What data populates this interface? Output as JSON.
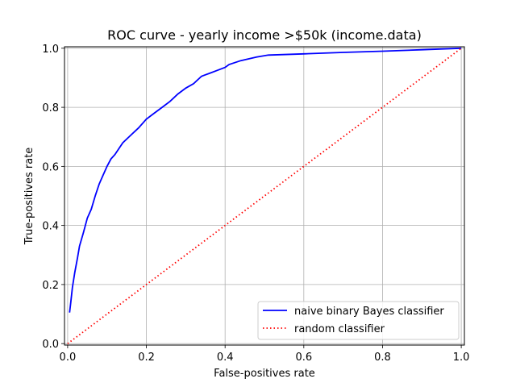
{
  "chart_data": {
    "type": "line",
    "title": "ROC curve - yearly income >$50k (income.data)",
    "xlabel": "False-positives rate",
    "ylabel": "True-positives rate",
    "xlim": [
      -0.008,
      1.008
    ],
    "ylim": [
      -0.005,
      1.005
    ],
    "xticks": [
      0.0,
      0.2,
      0.4,
      0.6,
      0.8,
      1.0
    ],
    "yticks": [
      0.0,
      0.2,
      0.4,
      0.6,
      0.8,
      1.0
    ],
    "xtick_labels": [
      "0.0",
      "0.2",
      "0.4",
      "0.6",
      "0.8",
      "1.0"
    ],
    "ytick_labels": [
      "0.0",
      "0.2",
      "0.4",
      "0.6",
      "0.8",
      "1.0"
    ],
    "grid": true,
    "legend_position": "lower-right",
    "series": [
      {
        "name": "naive binary Bayes classifier",
        "color": "#0000ff",
        "style": "solid",
        "x": [
          0.005,
          0.008,
          0.012,
          0.018,
          0.025,
          0.03,
          0.04,
          0.05,
          0.06,
          0.07,
          0.08,
          0.09,
          0.1,
          0.11,
          0.12,
          0.14,
          0.16,
          0.18,
          0.2,
          0.22,
          0.24,
          0.26,
          0.28,
          0.3,
          0.32,
          0.34,
          0.36,
          0.38,
          0.4,
          0.41,
          0.44,
          0.48,
          0.51,
          0.6,
          0.7,
          0.8,
          0.9,
          1.0
        ],
        "y": [
          0.105,
          0.14,
          0.19,
          0.24,
          0.29,
          0.33,
          0.375,
          0.425,
          0.455,
          0.5,
          0.54,
          0.57,
          0.6,
          0.625,
          0.64,
          0.68,
          0.705,
          0.73,
          0.76,
          0.78,
          0.8,
          0.82,
          0.845,
          0.865,
          0.88,
          0.905,
          0.915,
          0.925,
          0.935,
          0.945,
          0.958,
          0.97,
          0.977,
          0.981,
          0.986,
          0.99,
          0.995,
          1.0
        ]
      },
      {
        "name": "random classifier",
        "color": "#ff0000",
        "style": "dotted",
        "x": [
          0.0,
          1.0
        ],
        "y": [
          0.0,
          1.0
        ]
      }
    ]
  }
}
